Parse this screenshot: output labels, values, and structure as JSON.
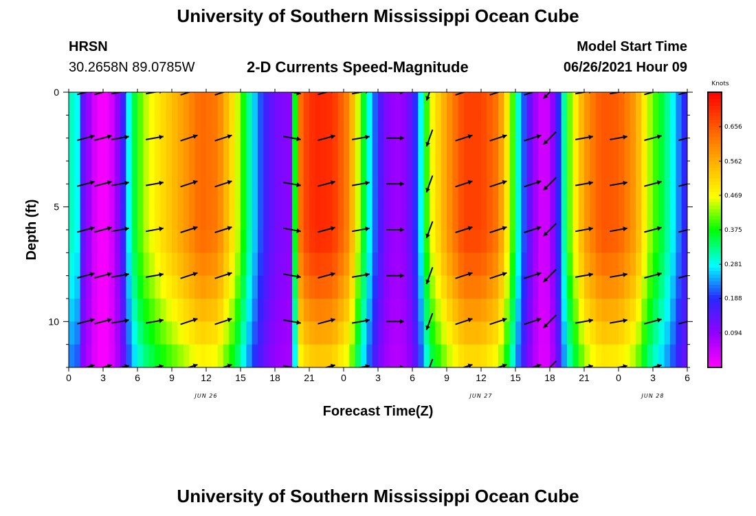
{
  "header": {
    "title": "University of Southern Mississippi Ocean Cube",
    "station": "HRSN",
    "coords": "30.2658N  89.0785W",
    "subtitle": "2-D Currents Speed-Magnitude",
    "model_label": "Model Start Time",
    "model_time": "06/26/2021 Hour 09"
  },
  "footer": {
    "title": "University of Southern Mississippi Ocean Cube"
  },
  "chart_data": {
    "type": "heatmap",
    "title": "2-D Currents Speed-Magnitude",
    "xlabel": "Forecast Time(Z)",
    "ylabel": "Depth (ft)",
    "x_ticks": [
      "0",
      "3",
      "6",
      "9",
      "12",
      "15",
      "18",
      "21",
      "0",
      "3",
      "6",
      "9",
      "12",
      "15",
      "18",
      "21",
      "0",
      "3",
      "6"
    ],
    "x_hours": [
      0,
      54
    ],
    "date_labels": [
      {
        "text": "JUN 26",
        "hour": 12
      },
      {
        "text": "JUN 27",
        "hour": 36
      },
      {
        "text": "JUN 28",
        "hour": 51
      }
    ],
    "y_ticks": [
      "0",
      "5",
      "10"
    ],
    "ylim": [
      0,
      12
    ],
    "colorbar": {
      "unit": "Knots",
      "ticks": [
        "0.656",
        "0.562",
        "0.469",
        "0.375",
        "0.281",
        "0.188",
        "0.094"
      ],
      "range": [
        0.0,
        0.75
      ]
    },
    "speed_profile": [
      {
        "hour": 0.0,
        "speed": 0.2
      },
      {
        "hour": 0.5,
        "speed": 0.4
      },
      {
        "hour": 1.0,
        "speed": 0.16
      },
      {
        "hour": 1.8,
        "speed": 0.08
      },
      {
        "hour": 2.5,
        "speed": 0.01
      },
      {
        "hour": 3.5,
        "speed": 0.01
      },
      {
        "hour": 4.5,
        "speed": 0.12
      },
      {
        "hour": 5.5,
        "speed": 0.33
      },
      {
        "hour": 6.5,
        "speed": 0.43
      },
      {
        "hour": 8.0,
        "speed": 0.5
      },
      {
        "hour": 9.5,
        "speed": 0.56
      },
      {
        "hour": 11.5,
        "speed": 0.64
      },
      {
        "hour": 13.0,
        "speed": 0.62
      },
      {
        "hour": 14.5,
        "speed": 0.48
      },
      {
        "hour": 16.0,
        "speed": 0.28
      },
      {
        "hour": 17.0,
        "speed": 0.18
      },
      {
        "hour": 18.0,
        "speed": 0.12
      },
      {
        "hour": 19.3,
        "speed": 0.1
      },
      {
        "hour": 19.8,
        "speed": 0.4
      },
      {
        "hour": 20.3,
        "speed": 0.66
      },
      {
        "hour": 21.5,
        "speed": 0.71
      },
      {
        "hour": 23.0,
        "speed": 0.7
      },
      {
        "hour": 24.5,
        "speed": 0.6
      },
      {
        "hour": 25.5,
        "speed": 0.4
      },
      {
        "hour": 26.5,
        "speed": 0.24
      },
      {
        "hour": 27.5,
        "speed": 0.12
      },
      {
        "hour": 28.5,
        "speed": 0.08
      },
      {
        "hour": 29.5,
        "speed": 0.1
      },
      {
        "hour": 30.5,
        "speed": 0.22
      },
      {
        "hour": 31.5,
        "speed": 0.45
      },
      {
        "hour": 33.0,
        "speed": 0.58
      },
      {
        "hour": 34.5,
        "speed": 0.68
      },
      {
        "hour": 36.0,
        "speed": 0.68
      },
      {
        "hour": 37.5,
        "speed": 0.62
      },
      {
        "hour": 38.5,
        "speed": 0.45
      },
      {
        "hour": 39.5,
        "speed": 0.24
      },
      {
        "hour": 40.5,
        "speed": 0.1
      },
      {
        "hour": 41.5,
        "speed": 0.02
      },
      {
        "hour": 42.5,
        "speed": 0.12
      },
      {
        "hour": 43.5,
        "speed": 0.38
      },
      {
        "hour": 45.0,
        "speed": 0.58
      },
      {
        "hour": 46.5,
        "speed": 0.66
      },
      {
        "hour": 48.0,
        "speed": 0.65
      },
      {
        "hour": 49.5,
        "speed": 0.58
      },
      {
        "hour": 50.5,
        "speed": 0.45
      },
      {
        "hour": 52.5,
        "speed": 0.3
      },
      {
        "hour": 53.5,
        "speed": 0.2
      },
      {
        "hour": 54.0,
        "speed": 0.16
      }
    ],
    "vector_hours": [
      0,
      1.5,
      3,
      4.5,
      7.5,
      10.5,
      13.5,
      19.5,
      22.5,
      25.5,
      28.5,
      31.5,
      34.5,
      37.5,
      40.5,
      42,
      45,
      48,
      51,
      54
    ],
    "vector_depths": [
      0,
      2,
      4,
      6,
      8,
      10,
      12
    ],
    "vectors": [
      {
        "hour": 1.5,
        "direction": 75
      },
      {
        "hour": 3,
        "direction": 75
      },
      {
        "hour": 4.5,
        "direction": 80
      },
      {
        "hour": 7.5,
        "direction": 80
      },
      {
        "hour": 10.5,
        "direction": 72
      },
      {
        "hour": 13.5,
        "direction": 72
      },
      {
        "hour": 19.5,
        "direction": 100
      },
      {
        "hour": 22.5,
        "direction": 75
      },
      {
        "hour": 25.5,
        "direction": 80
      },
      {
        "hour": 28.5,
        "direction": 90
      },
      {
        "hour": 31.5,
        "direction": 200
      },
      {
        "hour": 34.5,
        "direction": 72
      },
      {
        "hour": 37.5,
        "direction": 72
      },
      {
        "hour": 40.5,
        "direction": 72
      },
      {
        "hour": 42,
        "direction": 225
      },
      {
        "hour": 45,
        "direction": 80
      },
      {
        "hour": 48,
        "direction": 80
      },
      {
        "hour": 51,
        "direction": 75
      },
      {
        "hour": 54,
        "direction": 75
      }
    ]
  }
}
